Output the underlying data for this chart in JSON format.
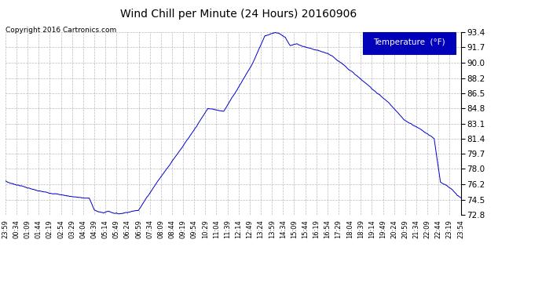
{
  "title": "Wind Chill per Minute (24 Hours) 20160906",
  "copyright": "Copyright 2016 Cartronics.com",
  "legend_label": "Temperature  (°F)",
  "line_color": "#0000cc",
  "background_color": "#ffffff",
  "grid_color": "#aaaaaa",
  "ylim": [
    72.8,
    93.4
  ],
  "yticks": [
    72.8,
    74.5,
    76.2,
    78.0,
    79.7,
    81.4,
    83.1,
    84.8,
    86.5,
    88.2,
    90.0,
    91.7,
    93.4
  ],
  "x_labels": [
    "23:59",
    "00:34",
    "01:09",
    "01:44",
    "02:19",
    "02:54",
    "03:29",
    "04:04",
    "04:39",
    "05:14",
    "05:49",
    "06:24",
    "06:59",
    "07:34",
    "08:09",
    "08:44",
    "09:19",
    "09:54",
    "10:29",
    "11:04",
    "11:39",
    "12:14",
    "12:49",
    "13:24",
    "13:59",
    "14:34",
    "15:09",
    "15:44",
    "16:19",
    "16:54",
    "17:29",
    "18:04",
    "18:39",
    "19:14",
    "19:49",
    "20:24",
    "20:59",
    "21:34",
    "22:09",
    "22:44",
    "23:19",
    "23:54"
  ],
  "key_t": [
    0,
    55,
    100,
    150,
    200,
    240,
    265,
    280,
    295,
    310,
    325,
    340,
    360,
    420,
    480,
    540,
    590,
    640,
    690,
    730,
    780,
    820,
    840,
    855,
    870,
    885,
    900,
    920,
    940,
    960,
    990,
    1020,
    1060,
    1110,
    1160,
    1210,
    1260,
    1310,
    1355,
    1375,
    1395,
    1415,
    1430,
    1439
  ],
  "key_v": [
    76.5,
    76.0,
    75.5,
    75.2,
    74.9,
    74.7,
    74.65,
    73.4,
    73.1,
    73.0,
    73.2,
    73.0,
    72.9,
    73.3,
    76.5,
    79.5,
    82.0,
    84.8,
    84.5,
    86.8,
    89.8,
    93.0,
    93.25,
    93.35,
    93.2,
    92.8,
    91.9,
    92.1,
    91.8,
    91.6,
    91.3,
    91.0,
    90.0,
    88.5,
    87.0,
    85.5,
    83.5,
    82.5,
    81.4,
    76.5,
    76.1,
    75.5,
    74.9,
    74.7
  ]
}
